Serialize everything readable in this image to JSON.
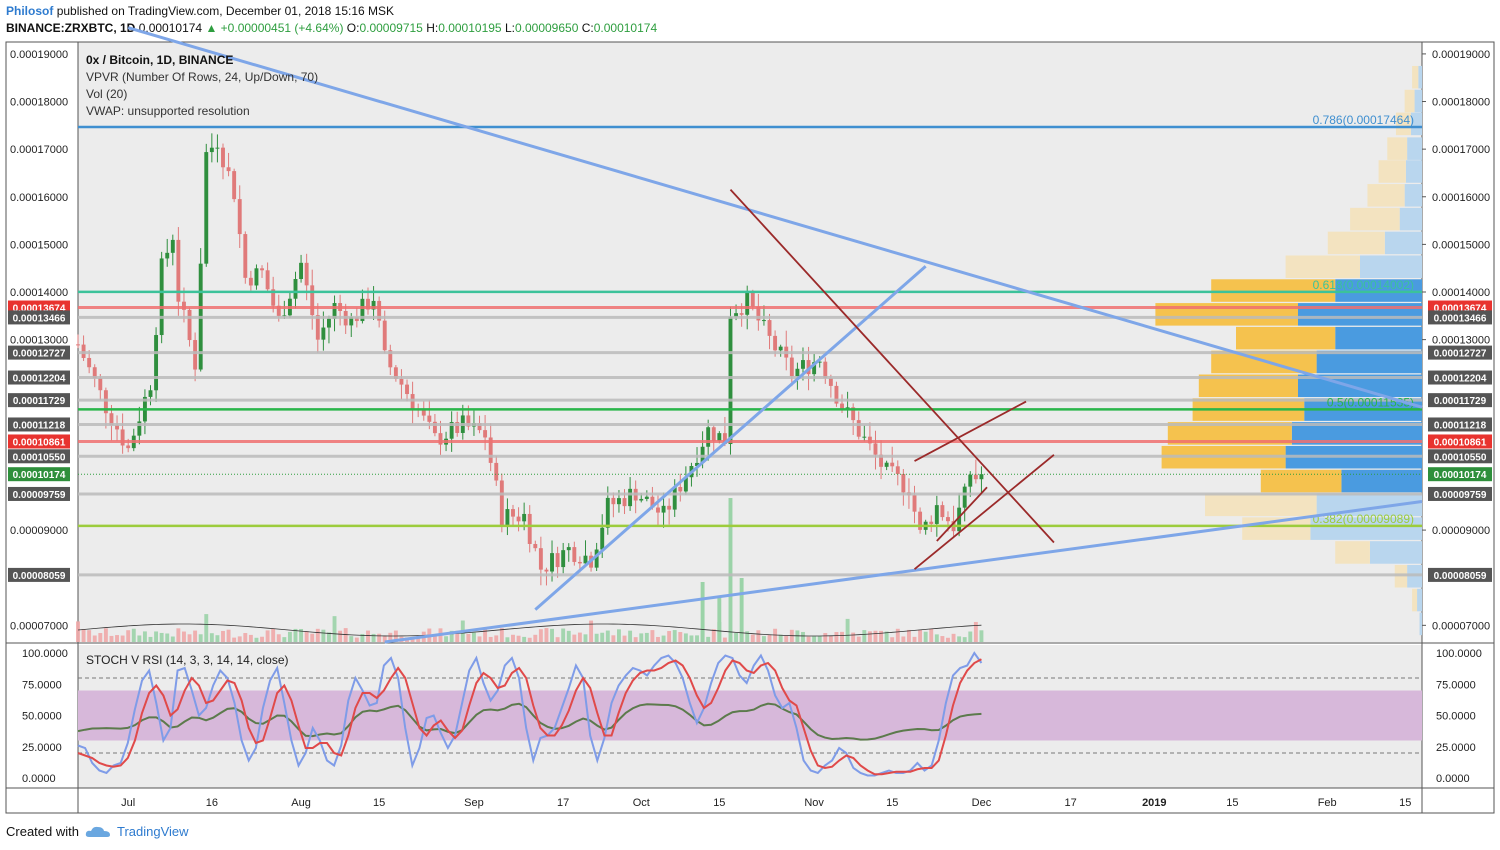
{
  "header": {
    "author": "Philosof",
    "published": "published on TradingView.com, December 01, 2018 15:16 MSK",
    "symbol": "BINANCE:ZRXBTC, 1D",
    "last": "0.00010174",
    "change": "+0.00000451 (+4.64%)",
    "o_label": "O:",
    "o_val": "0.00009715",
    "h_label": "H:",
    "h_val": "0.00010195",
    "l_label": "L:",
    "l_val": "0.00009650",
    "c_label": "C:",
    "c_val": "0.00010174"
  },
  "legend": [
    "0x / Bitcoin, 1D, BINANCE",
    "VPVR (Number Of Rows, 24, Up/Down, 70)",
    "Vol (20)",
    "VWAP: unsupported resolution"
  ],
  "footer": {
    "created": "Created with",
    "brand": "TradingView"
  },
  "colors": {
    "up": "#2f8f3e",
    "down": "#e07a7a",
    "trend": "#7ea6e8",
    "wedge": "#9b2a2a",
    "green_level": "#2ab54a",
    "teal_level": "#3cc29a",
    "red_level": "#f08080",
    "blue_level": "#3f8fd0",
    "lime_level": "#9ccc3c",
    "rsi_band": "#d7b8da",
    "stoch_k": "#7f9ce8",
    "stoch_d": "#e04a4a",
    "rsi": "#5c7a4c"
  },
  "chart_data": {
    "type": "candlestick",
    "price_axis": {
      "ticks": [
        "0.00019000",
        "0.00018000",
        "0.00017000",
        "0.00016000",
        "0.00015000",
        "0.00014000",
        "0.00013000",
        "0.00009000",
        "0.00007000"
      ],
      "tick_values": [
        0.00019,
        0.00018,
        0.00017,
        0.00016,
        0.00015,
        0.00014,
        0.00013,
        9e-05,
        7e-05
      ],
      "range": [
        6.65e-05,
        0.0001925
      ]
    },
    "x_axis": {
      "labels": [
        "Jul",
        "16",
        "Aug",
        "15",
        "Sep",
        "17",
        "Oct",
        "15",
        "Nov",
        "15",
        "Dec",
        "17",
        "2019",
        "15",
        "Feb",
        "15"
      ],
      "label_dates": [
        "2018-07-01",
        "2018-07-16",
        "2018-08-01",
        "2018-08-15",
        "2018-09-01",
        "2018-09-17",
        "2018-10-01",
        "2018-10-15",
        "2018-11-01",
        "2018-11-15",
        "2018-12-01",
        "2018-12-17",
        "2019-01-01",
        "2019-01-15",
        "2019-02-01",
        "2019-02-15"
      ],
      "range": [
        "2018-06-22",
        "2019-02-18"
      ]
    },
    "horizontal_levels": [
      {
        "label": "0.00013674",
        "price": 0.00013674,
        "color": "red"
      },
      {
        "label": "0.00013466",
        "price": 0.00013466,
        "color": "grey"
      },
      {
        "label": "0.00012727",
        "price": 0.00012727,
        "color": "grey"
      },
      {
        "label": "0.00012204",
        "price": 0.00012204,
        "color": "grey"
      },
      {
        "label": "0.00011729",
        "price": 0.00011729,
        "color": "grey"
      },
      {
        "label": "0.00011218",
        "price": 0.00011218,
        "color": "grey"
      },
      {
        "label": "0.00010861",
        "price": 0.00010861,
        "color": "red"
      },
      {
        "label": "0.00010550",
        "price": 0.0001055,
        "color": "grey"
      },
      {
        "label": "0.00010174",
        "price": 0.00010174,
        "color": "green"
      },
      {
        "label": "0.00009759",
        "price": 9.759e-05,
        "color": "grey"
      },
      {
        "label": "0.00008059",
        "price": 8.059e-05,
        "color": "grey"
      }
    ],
    "fib_levels": [
      {
        "label": "0.786(0.00017464)",
        "price": 0.00017464,
        "color": "blue"
      },
      {
        "label": "0.618(0.00014002)",
        "price": 0.00014002,
        "color": "teal"
      },
      {
        "label": "0.5(0.00011535)",
        "price": 0.00011535,
        "color": "green"
      },
      {
        "label": "0.382(0.00009089)",
        "price": 9.089e-05,
        "color": "lime"
      }
    ],
    "trendlines": [
      {
        "from": [
          "2018-07-01",
          0.0001955
        ],
        "to": [
          "2019-02-18",
          0.0001158
        ],
        "color": "trend"
      },
      {
        "from": [
          "2018-08-16",
          6.65e-05
        ],
        "to": [
          "2019-02-18",
          9.6e-05
        ],
        "color": "trend"
      },
      {
        "from": [
          "2018-09-12",
          7.33e-05
        ],
        "to": [
          "2018-11-21",
          0.0001454
        ],
        "color": "trend"
      },
      {
        "from": [
          "2018-10-17",
          0.0001615
        ],
        "to": [
          "2018-12-14",
          8.74e-05
        ],
        "color": "wedge"
      },
      {
        "from": [
          "2018-11-19",
          8.18e-05
        ],
        "to": [
          "2018-12-14",
          0.0001058
        ],
        "color": "wedge"
      },
      {
        "from": [
          "2018-11-19",
          0.0001045
        ],
        "to": [
          "2018-12-09",
          0.000117
        ],
        "color": "wedge"
      },
      {
        "from": [
          "2018-11-23",
          8.77e-05
        ],
        "to": [
          "2018-12-02",
          9.9e-05
        ],
        "color": "wedge"
      }
    ],
    "vpvr_rows": [
      {
        "price": 0.000185,
        "up": 0.5,
        "down": 0.3
      },
      {
        "price": 0.00018,
        "up": 0.8,
        "down": 0.6
      },
      {
        "price": 0.0001752,
        "up": 1.2,
        "down": 0.9
      },
      {
        "price": 0.00017,
        "up": 1.6,
        "down": 1.2
      },
      {
        "price": 0.0001652,
        "up": 2.2,
        "down": 1.3
      },
      {
        "price": 0.0001602,
        "up": 3.0,
        "down": 1.4
      },
      {
        "price": 0.0001552,
        "up": 4.0,
        "down": 1.8
      },
      {
        "price": 0.0001502,
        "up": 4.6,
        "down": 3.0
      },
      {
        "price": 0.0001452,
        "up": 6.0,
        "down": 5.0
      },
      {
        "price": 0.0001402,
        "up": 10.0,
        "down": 7.0
      },
      {
        "price": 0.0001352,
        "up": 11.5,
        "down": 10.0
      },
      {
        "price": 0.0001302,
        "up": 8.0,
        "down": 7.0
      },
      {
        "price": 0.0001252,
        "up": 8.5,
        "down": 8.5
      },
      {
        "price": 0.0001202,
        "up": 8.0,
        "down": 10.0
      },
      {
        "price": 0.0001152,
        "up": 9.0,
        "down": 9.5
      },
      {
        "price": 0.0001102,
        "up": 10.0,
        "down": 10.5
      },
      {
        "price": 0.0001052,
        "up": 10.0,
        "down": 11.0
      },
      {
        "price": 0.0001002,
        "up": 6.5,
        "down": 6.5
      },
      {
        "price": 9.52e-05,
        "up": 9.0,
        "down": 8.5
      },
      {
        "price": 9.02e-05,
        "up": 5.5,
        "down": 9.0
      },
      {
        "price": 8.52e-05,
        "up": 2.8,
        "down": 4.2
      },
      {
        "price": 8.02e-05,
        "up": 1.0,
        "down": 1.2
      },
      {
        "price": 7.52e-05,
        "up": 0.4,
        "down": 0.4
      },
      {
        "price": 7.02e-05,
        "up": 0.0,
        "down": 0.2
      }
    ],
    "stoch_rsi": {
      "title": "STOCH V RSI (14, 3, 3, 14, 14, close)",
      "ticks": [
        "100.0000",
        "75.0000",
        "50.0000",
        "25.0000",
        "0.0000"
      ],
      "tick_values": [
        100,
        75,
        50,
        25,
        0
      ],
      "band": [
        30,
        70
      ],
      "dashed": [
        80,
        20
      ],
      "k": [
        26,
        24,
        12,
        6,
        4,
        10,
        12,
        28,
        55,
        78,
        86,
        60,
        30,
        40,
        86,
        88,
        70,
        50,
        56,
        74,
        86,
        80,
        60,
        30,
        14,
        24,
        56,
        78,
        88,
        60,
        30,
        10,
        20,
        40,
        30,
        14,
        10,
        26,
        62,
        80,
        70,
        58,
        60,
        90,
        96,
        80,
        40,
        10,
        24,
        48,
        50,
        36,
        24,
        34,
        60,
        86,
        96,
        76,
        62,
        70,
        90,
        96,
        80,
        40,
        14,
        32,
        34,
        40,
        56,
        72,
        90,
        80,
        34,
        14,
        32,
        60,
        74,
        82,
        88,
        86,
        82,
        90,
        96,
        98,
        92,
        80,
        60,
        44,
        56,
        76,
        92,
        98,
        96,
        82,
        76,
        90,
        98,
        86,
        66,
        56,
        60,
        40,
        14,
        6,
        4,
        10,
        14,
        24,
        20,
        8,
        4,
        2,
        2,
        4,
        6,
        4,
        4,
        6,
        12,
        6,
        10,
        30,
        60,
        82,
        88,
        90,
        100,
        92
      ],
      "d": [
        20,
        18,
        16,
        12,
        10,
        9,
        10,
        16,
        30,
        52,
        68,
        74,
        66,
        50,
        55,
        70,
        80,
        74,
        60,
        62,
        70,
        78,
        76,
        62,
        40,
        28,
        30,
        48,
        68,
        74,
        62,
        42,
        24,
        24,
        28,
        28,
        20,
        18,
        34,
        56,
        68,
        68,
        64,
        70,
        80,
        88,
        80,
        60,
        40,
        34,
        42,
        46,
        38,
        32,
        38,
        58,
        76,
        84,
        80,
        72,
        74,
        84,
        88,
        80,
        58,
        40,
        34,
        34,
        42,
        54,
        70,
        80,
        72,
        52,
        34,
        34,
        52,
        68,
        78,
        84,
        86,
        86,
        88,
        92,
        94,
        90,
        80,
        66,
        56,
        60,
        72,
        86,
        94,
        92,
        86,
        84,
        90,
        92,
        86,
        72,
        62,
        58,
        40,
        22,
        10,
        8,
        9,
        14,
        18,
        16,
        10,
        6,
        3,
        3,
        4,
        5,
        5,
        5,
        7,
        8,
        8,
        14,
        34,
        58,
        76,
        86,
        92,
        95
      ]
    }
  }
}
